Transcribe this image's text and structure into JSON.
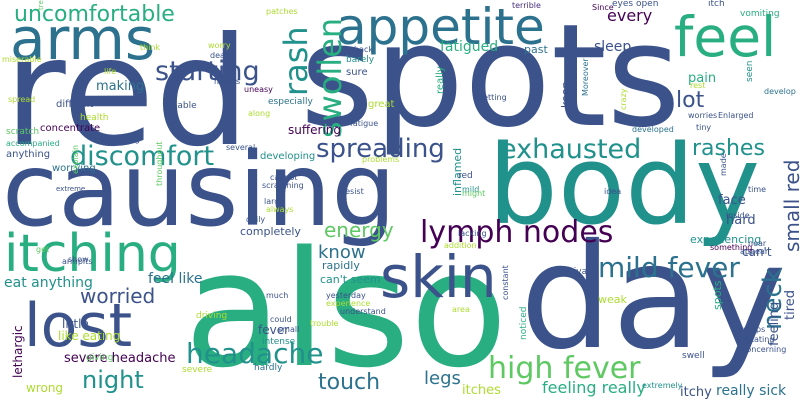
{
  "palette": [
    "#3b528b",
    "#2c728e",
    "#21918c",
    "#28ae80",
    "#5ec962",
    "#addc30",
    "#440154",
    "#472d7b"
  ],
  "words": [
    {
      "text": "red",
      "color": "#3b528b"
    },
    {
      "text": "spots",
      "color": "#3b528b"
    },
    {
      "text": "causing",
      "color": "#3b528b"
    },
    {
      "text": "body",
      "color": "#21918c"
    },
    {
      "text": "also",
      "color": "#28ae80"
    },
    {
      "text": "day",
      "color": "#3b528b"
    },
    {
      "text": "appetite",
      "color": "#2c728e"
    },
    {
      "text": "feel",
      "color": "#28ae80"
    },
    {
      "text": "arms",
      "color": "#2c728e"
    },
    {
      "text": "itching",
      "color": "#28ae80"
    },
    {
      "text": "lost",
      "color": "#3b528b"
    },
    {
      "text": "skin",
      "color": "#3b528b"
    },
    {
      "text": "uncomfortable",
      "color": "#28ae80"
    },
    {
      "text": "rash",
      "color": "#21918c"
    },
    {
      "text": "swollen",
      "color": "#28ae80"
    },
    {
      "text": "starting",
      "color": "#3b528b"
    },
    {
      "text": "discomfort",
      "color": "#21918c"
    },
    {
      "text": "exhausted",
      "color": "#21918c"
    },
    {
      "text": "spreading",
      "color": "#3b528b"
    },
    {
      "text": "lymph nodes",
      "color": "#440154"
    },
    {
      "text": "mild fever",
      "color": "#2c728e"
    },
    {
      "text": "high fever",
      "color": "#5ec962"
    },
    {
      "text": "headache",
      "color": "#21918c"
    },
    {
      "text": "worried",
      "color": "#3b528b"
    },
    {
      "text": "night",
      "color": "#21918c"
    },
    {
      "text": "touch",
      "color": "#2c728e"
    },
    {
      "text": "neck",
      "color": "#2c728e"
    },
    {
      "text": "lot",
      "color": "#3b528b"
    },
    {
      "text": "rashes",
      "color": "#21918c"
    },
    {
      "text": "small red",
      "color": "#3b528b"
    },
    {
      "text": "energy",
      "color": "#5ec962"
    },
    {
      "text": "know",
      "color": "#2c728e"
    },
    {
      "text": "legs",
      "color": "#2c728e"
    },
    {
      "text": "every",
      "color": "#440154"
    },
    {
      "text": "sleep",
      "color": "#3b528b"
    },
    {
      "text": "fatigued",
      "color": "#28ae80"
    },
    {
      "text": "pain",
      "color": "#28ae80"
    },
    {
      "text": "feel like",
      "color": "#2c728e"
    },
    {
      "text": "eat anything",
      "color": "#21918c"
    },
    {
      "text": "severe headache",
      "color": "#440154"
    },
    {
      "text": "feeling really",
      "color": "#28ae80"
    },
    {
      "text": "itches",
      "color": "#addc30"
    },
    {
      "text": "itchy",
      "color": "#3b528b"
    },
    {
      "text": "really sick",
      "color": "#2c728e"
    },
    {
      "text": "face",
      "color": "#3b528b"
    },
    {
      "text": "hard",
      "color": "#3b528b"
    },
    {
      "text": "can't",
      "color": "#3b528b"
    },
    {
      "text": "tired",
      "color": "#3b528b"
    },
    {
      "text": "feeling",
      "color": "#3b528b"
    },
    {
      "text": "making",
      "color": "#2c728e"
    },
    {
      "text": "suffering",
      "color": "#440154"
    },
    {
      "text": "inflamed",
      "color": "#21918c"
    },
    {
      "text": "completely",
      "color": "#3b528b"
    },
    {
      "text": "rapidly",
      "color": "#2c728e"
    },
    {
      "text": "can't seem",
      "color": "#21918c"
    },
    {
      "text": "fever",
      "color": "#3b528b"
    },
    {
      "text": "like eating",
      "color": "#addc30"
    },
    {
      "text": "weak",
      "color": "#addc30"
    },
    {
      "text": "wrong",
      "color": "#addc30"
    },
    {
      "text": "little",
      "color": "#3b528b"
    },
    {
      "text": "lethargic",
      "color": "#440154"
    },
    {
      "text": "keep",
      "color": "#3b528b"
    },
    {
      "text": "spots",
      "color": "#28ae80"
    },
    {
      "text": "experiencing",
      "color": "#21918c"
    },
    {
      "text": "concentrate",
      "color": "#440154"
    },
    {
      "text": "difficult",
      "color": "#3b528b"
    },
    {
      "text": "developing",
      "color": "#21918c"
    },
    {
      "text": "worrying",
      "color": "#2c728e"
    },
    {
      "text": "anything",
      "color": "#3b528b"
    },
    {
      "text": "scratch",
      "color": "#5ec962"
    },
    {
      "text": "accompanied",
      "color": "#28ae80"
    },
    {
      "text": "sure",
      "color": "#3b528b"
    },
    {
      "text": "barely",
      "color": "#21918c"
    },
    {
      "text": "past",
      "color": "#2c728e"
    },
    {
      "text": "really",
      "color": "#28ae80"
    },
    {
      "text": "great",
      "color": "#addc30"
    },
    {
      "text": "especially",
      "color": "#2c728e"
    },
    {
      "text": "health",
      "color": "#addc30"
    },
    {
      "text": "unable",
      "color": "#3b528b"
    },
    {
      "text": "intense",
      "color": "#21918c"
    },
    {
      "text": "small",
      "color": "#3b528b"
    },
    {
      "text": "hardly",
      "color": "#2c728e"
    },
    {
      "text": "driving",
      "color": "#addc30"
    },
    {
      "text": "severe",
      "color": "#addc30"
    },
    {
      "text": "giving",
      "color": "#5ec962"
    },
    {
      "text": "noticed",
      "color": "#28ae80"
    },
    {
      "text": "swell",
      "color": "#3b528b"
    },
    {
      "text": "extremely",
      "color": "#21918c"
    },
    {
      "text": "seen",
      "color": "#21918c"
    },
    {
      "text": "rest",
      "color": "#addc30"
    },
    {
      "text": "eyes open",
      "color": "#3b528b"
    },
    {
      "text": "itch",
      "color": "#3b528b"
    },
    {
      "text": "vomiting",
      "color": "#28ae80"
    },
    {
      "text": "motivate",
      "color": "#3b528b"
    },
    {
      "text": "red",
      "color": "#3b528b"
    },
    {
      "text": "mild",
      "color": "#21918c"
    },
    {
      "text": "fatigue",
      "color": "#3b528b"
    },
    {
      "text": "patches",
      "color": "#addc30"
    },
    {
      "text": "terrible",
      "color": "#472d7b"
    },
    {
      "text": "Since",
      "color": "#440154"
    },
    {
      "text": "worry",
      "color": "#addc30"
    },
    {
      "text": "deal",
      "color": "#3b528b"
    },
    {
      "text": "makes",
      "color": "#3b528b"
    },
    {
      "text": "uneasy",
      "color": "#440154"
    },
    {
      "text": "along",
      "color": "#addc30"
    },
    {
      "text": "life",
      "color": "#addc30"
    },
    {
      "text": "back",
      "color": "#3b528b"
    },
    {
      "text": "insane",
      "color": "#3b528b"
    },
    {
      "text": "getting",
      "color": "#3b528b"
    },
    {
      "text": "Moreover",
      "color": "#2c728e"
    },
    {
      "text": "crazy",
      "color": "#addc30"
    },
    {
      "text": "develop",
      "color": "#2c728e"
    },
    {
      "text": "worries",
      "color": "#3b528b"
    },
    {
      "text": "Enlarged",
      "color": "#3b528b"
    },
    {
      "text": "tiny",
      "color": "#3b528b"
    },
    {
      "text": "developed",
      "color": "#2c728e"
    },
    {
      "text": "made",
      "color": "#3b528b"
    },
    {
      "text": "time",
      "color": "#3b528b"
    },
    {
      "text": "inside",
      "color": "#3b528b"
    },
    {
      "text": "near",
      "color": "#3b528b"
    },
    {
      "text": "appear",
      "color": "#3b528b"
    },
    {
      "text": "something",
      "color": "#440154"
    },
    {
      "text": "idea",
      "color": "#3b528b"
    },
    {
      "text": "might",
      "color": "#5ec962"
    },
    {
      "text": "lacking",
      "color": "#3b528b"
    },
    {
      "text": "addition",
      "color": "#addc30"
    },
    {
      "text": "resist",
      "color": "#3b528b"
    },
    {
      "text": "cannot",
      "color": "#3b528b"
    },
    {
      "text": "scratching",
      "color": "#3b528b"
    },
    {
      "text": "large",
      "color": "#3b528b"
    },
    {
      "text": "always",
      "color": "#addc30"
    },
    {
      "text": "daily",
      "color": "#3b528b"
    },
    {
      "text": "several",
      "color": "#3b528b"
    },
    {
      "text": "beginning",
      "color": "#3b528b"
    },
    {
      "text": "explain",
      "color": "#5ec962"
    },
    {
      "text": "throughout",
      "color": "#5ec962"
    },
    {
      "text": "problems",
      "color": "#addc30"
    },
    {
      "text": "armpits",
      "color": "#3b528b"
    },
    {
      "text": "get",
      "color": "#5ec962"
    },
    {
      "text": "show",
      "color": "#3b528b"
    },
    {
      "text": "much",
      "color": "#3b528b"
    },
    {
      "text": "yesterday",
      "color": "#3b528b"
    },
    {
      "text": "experience",
      "color": "#addc30"
    },
    {
      "text": "could",
      "color": "#3b528b"
    },
    {
      "text": "trouble",
      "color": "#addc30"
    },
    {
      "text": "understand",
      "color": "#3b528b"
    },
    {
      "text": "area",
      "color": "#addc30"
    },
    {
      "text": "constant",
      "color": "#3b528b"
    },
    {
      "text": "bumps",
      "color": "#3b528b"
    },
    {
      "text": "irritating",
      "color": "#3b528b"
    },
    {
      "text": "concerning",
      "color": "#3b528b"
    },
    {
      "text": "think",
      "color": "#addc30"
    },
    {
      "text": "miserable",
      "color": "#addc30"
    },
    {
      "text": "tremendous",
      "color": "#5ec962"
    },
    {
      "text": "spread",
      "color": "#addc30"
    },
    {
      "text": "extreme",
      "color": "#3b528b"
    }
  ]
}
